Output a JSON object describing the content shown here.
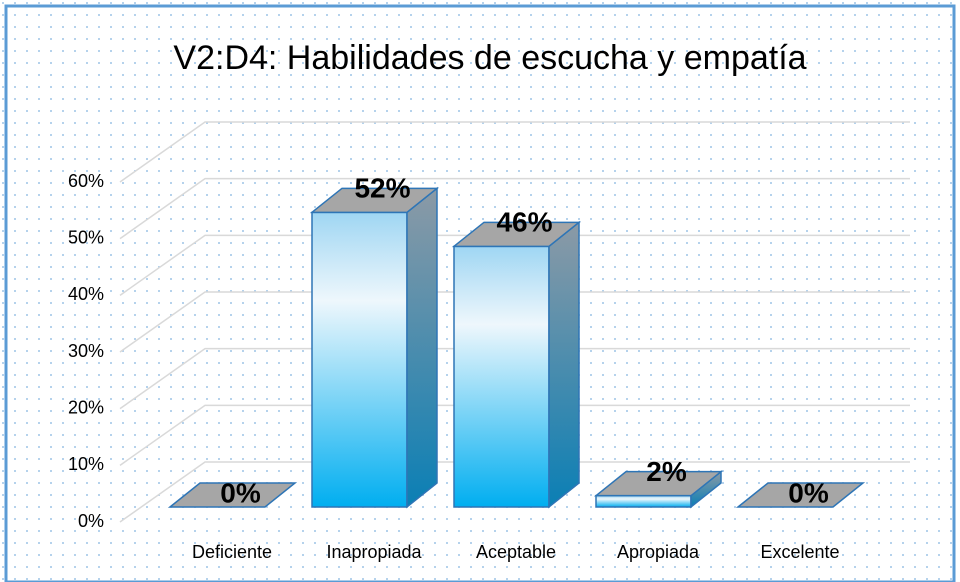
{
  "chart_data": {
    "type": "bar3d",
    "title": "V2:D4: Habilidades de escucha y empatía",
    "categories": [
      "Deficiente",
      "Inapropiada",
      "Aceptable",
      "Apropiada",
      "Excelente"
    ],
    "values": [
      0,
      52,
      46,
      2,
      0
    ],
    "value_labels": [
      "0%",
      "52%",
      "46%",
      "2%",
      "0%"
    ],
    "color": "#00b0f0",
    "ylim": [
      0,
      60
    ],
    "yticks": [
      {
        "value": 0,
        "label": "0%"
      },
      {
        "value": 10,
        "label": "10%"
      },
      {
        "value": 20,
        "label": "20%"
      },
      {
        "value": 30,
        "label": "30%"
      },
      {
        "value": 40,
        "label": "40%"
      },
      {
        "value": 50,
        "label": "50%"
      },
      {
        "value": 60,
        "label": "60%"
      }
    ],
    "grid": true
  }
}
